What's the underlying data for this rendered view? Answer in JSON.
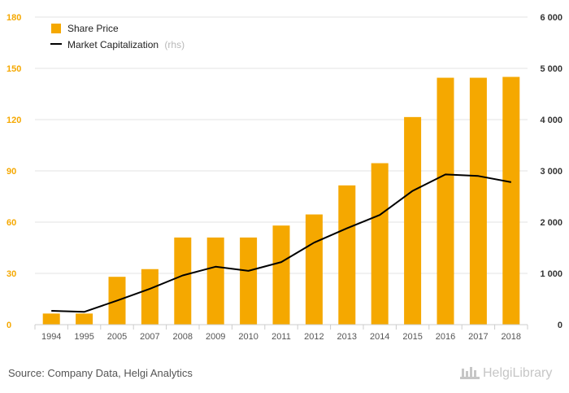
{
  "chart_data": {
    "type": "bar",
    "categories": [
      "1994",
      "1995",
      "2005",
      "2007",
      "2008",
      "2009",
      "2010",
      "2011",
      "2012",
      "2013",
      "2014",
      "2015",
      "2016",
      "2017",
      "2018"
    ],
    "series": [
      {
        "name": "Share Price",
        "type": "bar",
        "axis": "left",
        "color": "#f5a800",
        "values": [
          6.5,
          6.5,
          28,
          32.5,
          51,
          51,
          51,
          58,
          64.5,
          81.5,
          94.5,
          121.5,
          144.5,
          144.5,
          145
        ]
      },
      {
        "name": "Market Capitalization",
        "name_suffix": "(rhs)",
        "type": "line",
        "axis": "right",
        "color": "#000000",
        "values": [
          270,
          250,
          470,
          700,
          960,
          1130,
          1050,
          1220,
          1600,
          1880,
          2140,
          2610,
          2930,
          2900,
          2780
        ]
      }
    ],
    "yleft": {
      "min": 0,
      "max": 180,
      "ticks": [
        "0",
        "30",
        "60",
        "90",
        "120",
        "150",
        "180"
      ],
      "color": "#f5a800"
    },
    "yright": {
      "min": 0,
      "max": 6000,
      "ticks": [
        "0",
        "1 000",
        "2 000",
        "3 000",
        "4 000",
        "5 000",
        "6 000"
      ]
    },
    "grid": true,
    "legend_position": "top-left"
  },
  "source": "Source: Company Data, Helgi Analytics",
  "brand": "HelgiLibrary"
}
